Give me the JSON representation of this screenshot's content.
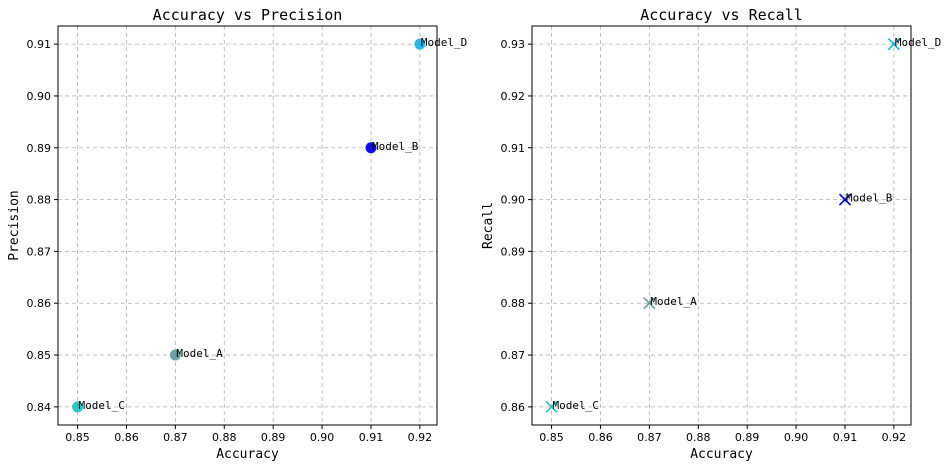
{
  "chart_data": [
    {
      "type": "scatter",
      "title": "Accuracy vs Precision",
      "xlabel": "Accuracy",
      "ylabel": "Precision",
      "xlim": [
        0.846,
        0.9235
      ],
      "ylim": [
        0.8365,
        0.9135
      ],
      "xticks": [
        0.85,
        0.86,
        0.87,
        0.88,
        0.89,
        0.9,
        0.91,
        0.92
      ],
      "yticks": [
        0.84,
        0.85,
        0.86,
        0.87,
        0.88,
        0.89,
        0.9,
        0.91
      ],
      "grid": true,
      "marker": "circle",
      "points": [
        {
          "label": "Model_A",
          "x": 0.87,
          "y": 0.85,
          "color": "#5f9ea0"
        },
        {
          "label": "Model_B",
          "x": 0.91,
          "y": 0.89,
          "color": "#0000ee"
        },
        {
          "label": "Model_C",
          "x": 0.85,
          "y": 0.84,
          "color": "#20c4c4"
        },
        {
          "label": "Model_D",
          "x": 0.92,
          "y": 0.91,
          "color": "#1eb4e6"
        }
      ]
    },
    {
      "type": "scatter",
      "title": "Accuracy vs Recall",
      "xlabel": "Accuracy",
      "ylabel": "Recall",
      "xlim": [
        0.846,
        0.9235
      ],
      "ylim": [
        0.8565,
        0.9335
      ],
      "xticks": [
        0.85,
        0.86,
        0.87,
        0.88,
        0.89,
        0.9,
        0.91,
        0.92
      ],
      "yticks": [
        0.86,
        0.87,
        0.88,
        0.89,
        0.9,
        0.91,
        0.92,
        0.93
      ],
      "grid": true,
      "marker": "x",
      "points": [
        {
          "label": "Model_A",
          "x": 0.87,
          "y": 0.88,
          "color": "#5f9ea0"
        },
        {
          "label": "Model_B",
          "x": 0.91,
          "y": 0.9,
          "color": "#0000cc"
        },
        {
          "label": "Model_C",
          "x": 0.85,
          "y": 0.86,
          "color": "#20c4c4"
        },
        {
          "label": "Model_D",
          "x": 0.92,
          "y": 0.93,
          "color": "#1eb4d2"
        }
      ]
    }
  ]
}
